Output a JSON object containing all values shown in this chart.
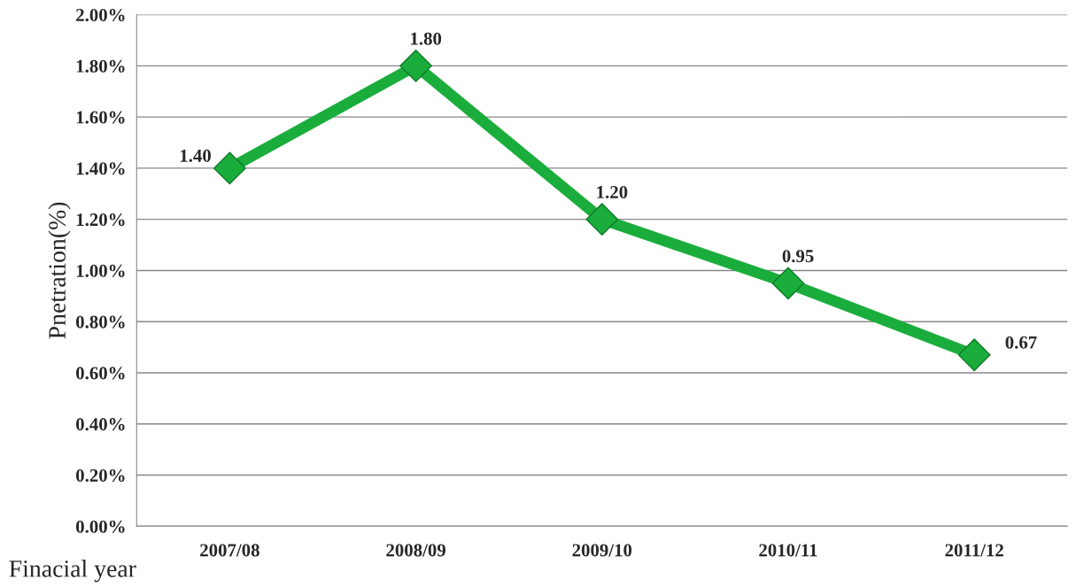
{
  "chart_data": {
    "type": "line",
    "categories": [
      "2007/08",
      "2008/09",
      "2009/10",
      "2010/11",
      "2011/12"
    ],
    "series": [
      {
        "color": "#1aad3c",
        "values": [
          1.4,
          1.8,
          1.2,
          0.95,
          0.67
        ],
        "value_labels": [
          "1.40",
          "1.80",
          "1.20",
          "0.95",
          "0.67"
        ]
      }
    ],
    "xlabel": "Finacial year",
    "ylabel": "Pnetration(%)",
    "ylim": [
      0,
      2.0
    ],
    "yticks": [
      {
        "value": 0,
        "label": "0.00%"
      },
      {
        "value": 0.2,
        "label": "0.20%"
      },
      {
        "value": 0.4,
        "label": "0.40%"
      },
      {
        "value": 0.6,
        "label": "0.60%"
      },
      {
        "value": 0.8,
        "label": "0.80%"
      },
      {
        "value": 1.0,
        "label": "1.00%"
      },
      {
        "value": 1.2,
        "label": "1.20%"
      },
      {
        "value": 1.4,
        "label": "1.40%"
      },
      {
        "value": 1.6,
        "label": "1.60%"
      },
      {
        "value": 1.8,
        "label": "1.80%"
      },
      {
        "value": 2.0,
        "label": "2.00%"
      }
    ],
    "grid": "y",
    "marker": "diamond",
    "line_style": "solid"
  }
}
